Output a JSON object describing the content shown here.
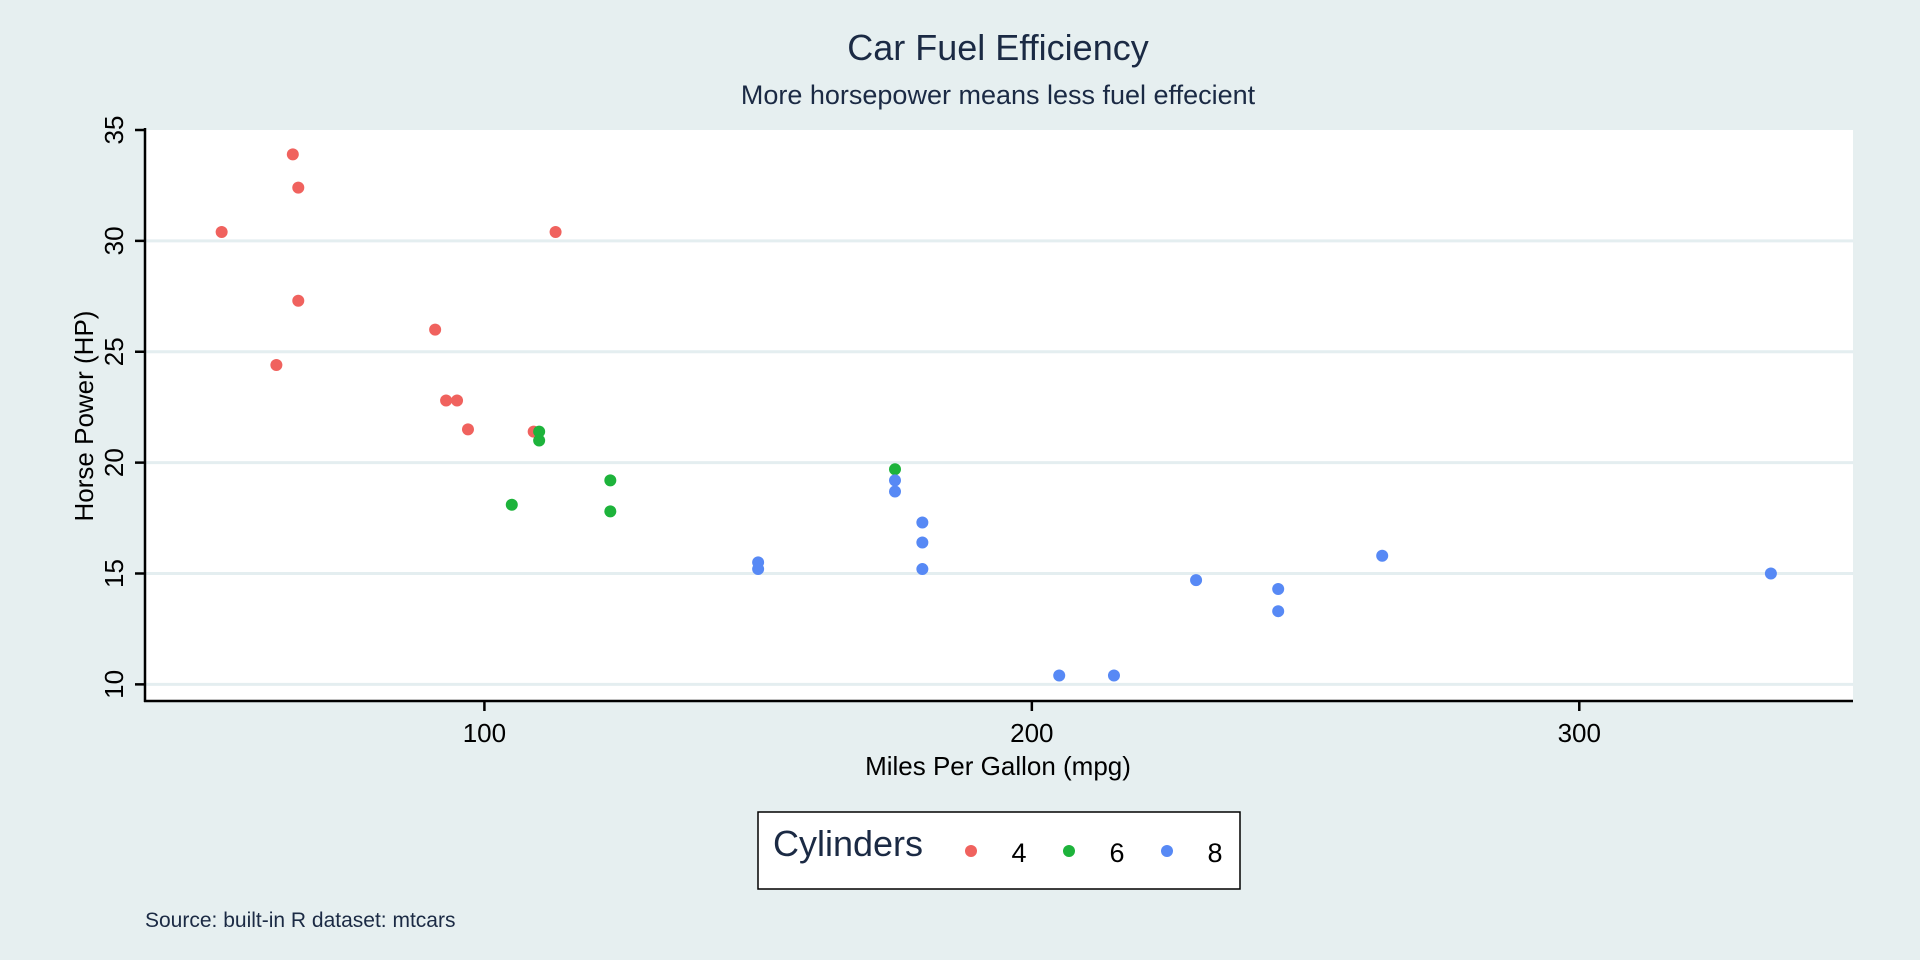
{
  "chart_data": {
    "type": "scatter",
    "title": "Car Fuel Efficiency",
    "subtitle": "More horsepower means less fuel effecient",
    "xlabel": "Miles Per Gallon (mpg)",
    "ylabel": "Horse Power (HP)",
    "xlim": [
      38,
      350
    ],
    "ylim": [
      9.25,
      35.0
    ],
    "xticks": [
      100,
      200,
      300
    ],
    "yticks": [
      10,
      15,
      20,
      25,
      30,
      35
    ],
    "grid": "horizontal",
    "caption": "Source: built-in R dataset: mtcars",
    "legend": {
      "title": "Cylinders",
      "position": "bottom-center",
      "entries": [
        {
          "label": "4",
          "color": "#f0625e"
        },
        {
          "label": "6",
          "color": "#1db33b"
        },
        {
          "label": "8",
          "color": "#5789f5"
        }
      ]
    },
    "series": [
      {
        "name": "4",
        "color": "#f0625e",
        "points": [
          {
            "x": 52,
            "y": 30.4
          },
          {
            "x": 65,
            "y": 33.9
          },
          {
            "x": 66,
            "y": 32.4
          },
          {
            "x": 66,
            "y": 27.3
          },
          {
            "x": 62,
            "y": 24.4
          },
          {
            "x": 113,
            "y": 30.4
          },
          {
            "x": 91,
            "y": 26.0
          },
          {
            "x": 93,
            "y": 22.8
          },
          {
            "x": 95,
            "y": 22.8
          },
          {
            "x": 97,
            "y": 21.5
          },
          {
            "x": 109,
            "y": 21.4
          }
        ]
      },
      {
        "name": "6",
        "color": "#1db33b",
        "points": [
          {
            "x": 110,
            "y": 21.4
          },
          {
            "x": 110,
            "y": 21.0
          },
          {
            "x": 105,
            "y": 18.1
          },
          {
            "x": 123,
            "y": 19.2
          },
          {
            "x": 123,
            "y": 17.8
          },
          {
            "x": 175,
            "y": 19.7
          }
        ]
      },
      {
        "name": "8",
        "color": "#5789f5",
        "points": [
          {
            "x": 175,
            "y": 19.2
          },
          {
            "x": 175,
            "y": 18.7
          },
          {
            "x": 180,
            "y": 17.3
          },
          {
            "x": 180,
            "y": 16.4
          },
          {
            "x": 180,
            "y": 15.2
          },
          {
            "x": 150,
            "y": 15.5
          },
          {
            "x": 150,
            "y": 15.2
          },
          {
            "x": 205,
            "y": 10.4
          },
          {
            "x": 215,
            "y": 10.4
          },
          {
            "x": 230,
            "y": 14.7
          },
          {
            "x": 245,
            "y": 14.3
          },
          {
            "x": 245,
            "y": 13.3
          },
          {
            "x": 264,
            "y": 15.8
          },
          {
            "x": 335,
            "y": 15.0
          }
        ]
      }
    ]
  }
}
